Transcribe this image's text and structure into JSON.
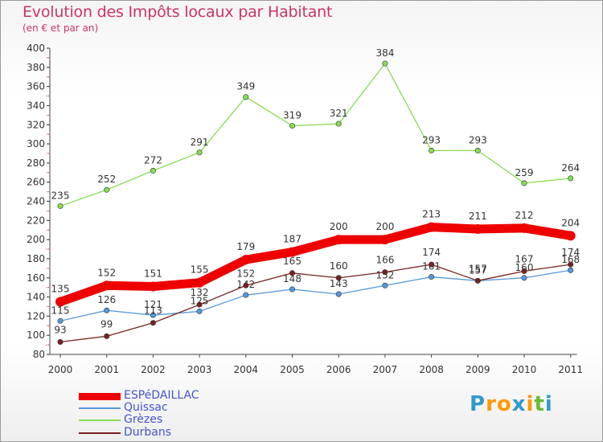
{
  "title": "Evolution des Impôts locaux par Habitant",
  "subtitle": "(en € et par an)",
  "brand": "Proxiti",
  "chart_data": {
    "type": "line",
    "x": [
      "2000",
      "2001",
      "2002",
      "2003",
      "2004",
      "2005",
      "2006",
      "2007",
      "2008",
      "2009",
      "2010",
      "2011"
    ],
    "yticks": [
      80,
      100,
      120,
      140,
      160,
      180,
      200,
      220,
      240,
      260,
      280,
      300,
      320,
      340,
      360,
      380,
      400
    ],
    "ylim": [
      80,
      400
    ],
    "grid": false,
    "legend": "bottom-left",
    "series": [
      {
        "name": "Grèzes",
        "color": "#88dd55",
        "labels": true,
        "values": [
          235,
          252,
          272,
          291,
          349,
          319,
          321,
          384,
          293,
          293,
          259,
          264
        ],
        "value_labels": [
          "235",
          "252",
          "272",
          "291",
          "349",
          "319",
          "321",
          "384",
          "293",
          "293",
          "259",
          "264"
        ]
      },
      {
        "name": "Quissac",
        "color": "#5599dd",
        "labels": true,
        "values": [
          115,
          126,
          121,
          125,
          142,
          148,
          143,
          152,
          161,
          157,
          160,
          168
        ],
        "value_labels": [
          "115",
          "126",
          "121",
          "125",
          "142",
          "148",
          "143",
          "152",
          "161",
          "157",
          "160",
          "168"
        ]
      },
      {
        "name": "Durbans",
        "color": "#772222",
        "labels": true,
        "values": [
          93,
          99,
          113,
          132,
          152,
          165,
          160,
          166,
          174,
          157,
          167,
          174
        ],
        "value_labels": [
          "93",
          "99",
          "113",
          "132",
          "152",
          "165",
          "160",
          "166",
          "174",
          "157",
          "167",
          "174"
        ]
      },
      {
        "name": "ESPéDAILLAC",
        "color": "#ee0000",
        "labels": true,
        "values": [
          135,
          152,
          151,
          155,
          179,
          187,
          200,
          200,
          213,
          211,
          212,
          204
        ],
        "value_labels": [
          "135",
          "152",
          "151",
          "155",
          "179",
          "187",
          "200",
          "200",
          "213",
          "211",
          "212",
          "204"
        ]
      }
    ]
  }
}
